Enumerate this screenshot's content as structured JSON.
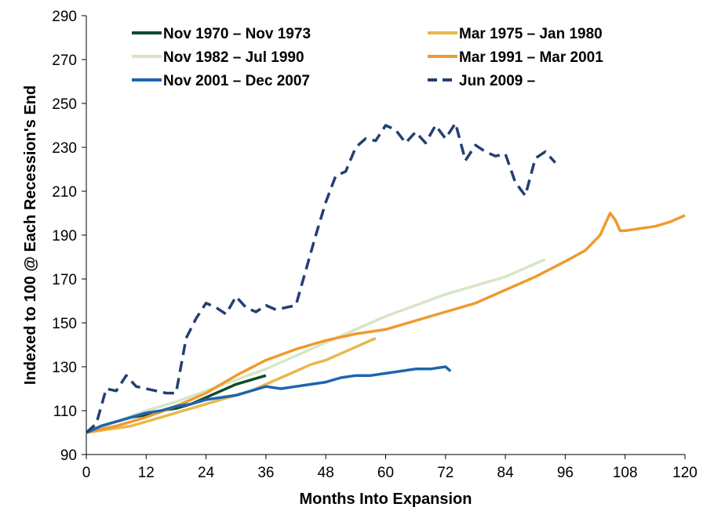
{
  "chart_data": {
    "type": "line",
    "title": "",
    "xlabel": "Months Into Expansion",
    "ylabel": "Indexed to 100 @ Each Recession's End",
    "xlim": [
      0,
      120
    ],
    "ylim": [
      90,
      290
    ],
    "xticks": [
      0,
      12,
      24,
      36,
      48,
      60,
      72,
      84,
      96,
      108,
      120
    ],
    "yticks": [
      90,
      110,
      130,
      150,
      170,
      190,
      210,
      230,
      250,
      270,
      290
    ],
    "grid": false,
    "legend_position": "top",
    "series": [
      {
        "name": "Nov 1970 – Nov 1973",
        "color": "#0f4a2f",
        "dash": "solid",
        "x": [
          0,
          3,
          6,
          9,
          12,
          15,
          18,
          21,
          24,
          27,
          30,
          33,
          36
        ],
        "y": [
          100,
          103,
          105,
          107,
          108,
          110,
          111,
          113,
          116,
          119,
          122,
          124,
          126
        ]
      },
      {
        "name": "Mar 1975 – Jan 1980",
        "color": "#e8b84a",
        "dash": "solid",
        "x": [
          0,
          3,
          6,
          9,
          12,
          15,
          18,
          21,
          24,
          27,
          30,
          33,
          36,
          39,
          42,
          45,
          48,
          51,
          54,
          57,
          58
        ],
        "y": [
          100,
          101,
          102,
          103,
          105,
          107,
          109,
          111,
          113,
          115,
          117,
          119,
          122,
          125,
          128,
          131,
          133,
          136,
          139,
          142,
          143
        ]
      },
      {
        "name": "Nov 1982 – Jul 1990",
        "color": "#d6e6c6",
        "dash": "solid",
        "x": [
          0,
          6,
          12,
          18,
          24,
          30,
          36,
          42,
          48,
          54,
          60,
          66,
          72,
          78,
          84,
          90,
          92
        ],
        "y": [
          100,
          105,
          110,
          114,
          119,
          124,
          129,
          135,
          141,
          147,
          153,
          158,
          163,
          167,
          171,
          177,
          179
        ]
      },
      {
        "name": "Mar 1991 – Mar 2001",
        "color": "#ef9a2d",
        "dash": "solid",
        "x": [
          0,
          6,
          12,
          18,
          24,
          30,
          36,
          42,
          48,
          54,
          60,
          66,
          72,
          78,
          84,
          90,
          96,
          100,
          103,
          105,
          106,
          107,
          108,
          111,
          114,
          117,
          120
        ],
        "y": [
          100,
          103,
          107,
          112,
          118,
          126,
          133,
          138,
          142,
          145,
          147,
          151,
          155,
          159,
          165,
          171,
          178,
          183,
          190,
          200,
          197,
          192,
          192,
          193,
          194,
          196,
          199
        ]
      },
      {
        "name": "Nov 2001 – Dec 2007",
        "color": "#1f64b0",
        "dash": "solid",
        "x": [
          0,
          3,
          6,
          9,
          12,
          15,
          18,
          21,
          24,
          27,
          30,
          33,
          36,
          39,
          42,
          45,
          48,
          51,
          54,
          57,
          60,
          63,
          66,
          69,
          72,
          73
        ],
        "y": [
          100,
          103,
          105,
          107,
          109,
          110,
          112,
          113,
          115,
          116,
          117,
          119,
          121,
          120,
          121,
          122,
          123,
          125,
          126,
          126,
          127,
          128,
          129,
          129,
          130,
          128
        ]
      },
      {
        "name": "Jun 2009 –",
        "color": "#243f73",
        "dash": "dashed",
        "x": [
          0,
          2,
          4,
          6,
          8,
          10,
          12,
          14,
          16,
          18,
          20,
          22,
          24,
          26,
          28,
          30,
          32,
          34,
          36,
          38,
          40,
          42,
          44,
          46,
          48,
          50,
          52,
          54,
          56,
          58,
          60,
          62,
          64,
          66,
          68,
          70,
          72,
          74,
          76,
          78,
          80,
          82,
          84,
          86,
          88,
          90,
          92,
          94
        ],
        "y": [
          100,
          104,
          120,
          119,
          126,
          121,
          120,
          119,
          118,
          118,
          143,
          152,
          159,
          157,
          154,
          162,
          157,
          155,
          158,
          156,
          157,
          158,
          174,
          190,
          205,
          217,
          219,
          230,
          234,
          233,
          240,
          238,
          232,
          237,
          232,
          240,
          234,
          241,
          224,
          231,
          228,
          226,
          227,
          214,
          208,
          225,
          228,
          223
        ]
      }
    ]
  }
}
